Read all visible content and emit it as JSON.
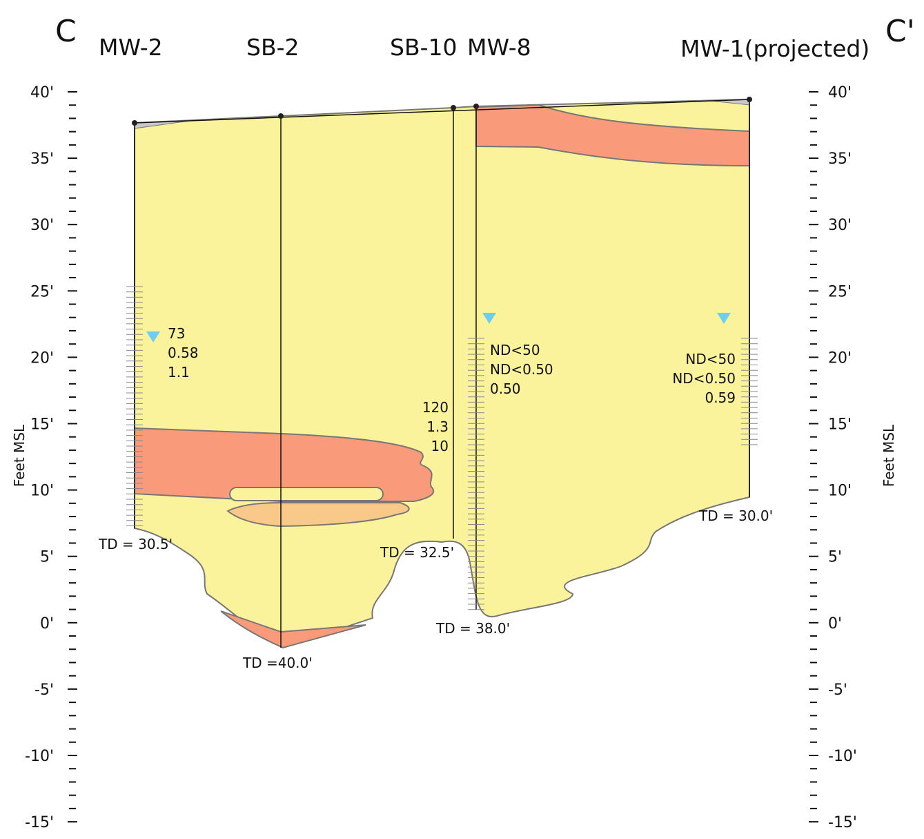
{
  "section": {
    "start": "C",
    "end": "C'"
  },
  "wells": [
    {
      "name": "MW-2",
      "td": "TD = 30.5'",
      "results": [
        "73",
        "0.58",
        "1.1"
      ]
    },
    {
      "name": "SB-2",
      "td": "TD =40.0'"
    },
    {
      "name": "SB-10",
      "td": "TD = 32.5'",
      "results": [
        "120",
        "1.3",
        "10"
      ]
    },
    {
      "name": "MW-8",
      "td": "TD = 38.0'",
      "results": [
        "ND<50",
        "ND<0.50",
        "0.50"
      ]
    },
    {
      "name": "MW-1(projected)",
      "td": "TD = 30.0'",
      "results": [
        "ND<50",
        "ND<0.50",
        "0.59"
      ]
    }
  ],
  "axis": {
    "title": "Feet MSL",
    "ticks": [
      "40'",
      "35'",
      "30'",
      "25'",
      "20'",
      "15'",
      "10'",
      "5'",
      "0'",
      "-5'",
      "-10'",
      "-15'"
    ]
  }
}
